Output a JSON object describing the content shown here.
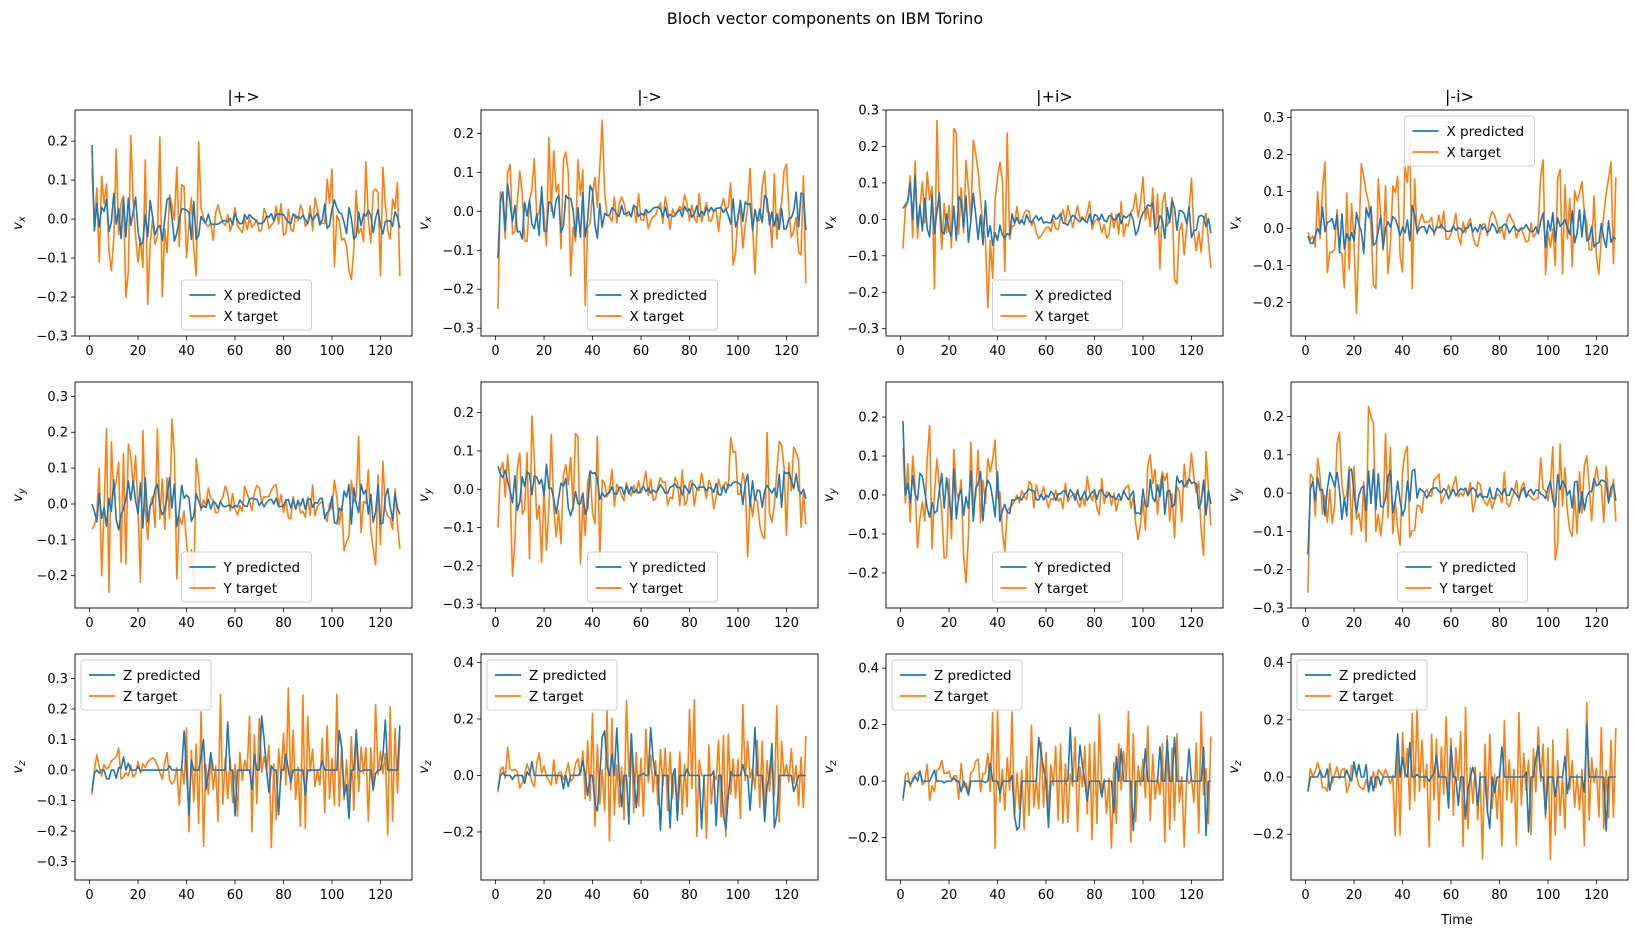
{
  "figure": {
    "title": "Bloch vector components on IBM Torino",
    "xlabel": "Time",
    "colors": {
      "predicted": "#1f77b4",
      "target": "#ff7f0e"
    }
  },
  "chart_data": [
    {
      "type": "line",
      "row": 0,
      "col": 0,
      "title": "|+>",
      "ylabel": "v_x",
      "xlim": [
        -6,
        133
      ],
      "ylim": [
        -0.3,
        0.28
      ],
      "yticks": [
        -0.3,
        -0.2,
        -0.1,
        0.0,
        0.1,
        0.2
      ],
      "xticks": [
        0,
        20,
        40,
        60,
        80,
        100,
        120
      ],
      "legend": "lower-center",
      "seed": 101,
      "amp": 0.23,
      "nudge": 0.015,
      "series": [
        {
          "name": "X predicted",
          "kind": "predicted",
          "values_sample": [
            0.19,
            -0.03,
            0.04,
            -0.02,
            0.03,
            0.02,
            0.05
          ]
        },
        {
          "name": "X target",
          "kind": "target",
          "values_sample": [
            0.13,
            -0.02,
            0.08,
            -0.11,
            0.11,
            0.04,
            0.09
          ]
        }
      ]
    },
    {
      "type": "line",
      "row": 0,
      "col": 1,
      "title": "|->",
      "ylabel": "v_x",
      "xlim": [
        -6,
        133
      ],
      "ylim": [
        -0.32,
        0.26
      ],
      "yticks": [
        -0.3,
        -0.2,
        -0.1,
        0.0,
        0.1,
        0.2
      ],
      "xticks": [
        0,
        20,
        40,
        60,
        80,
        100,
        120
      ],
      "legend": "lower-center",
      "seed": 202,
      "amp": 0.24,
      "nudge": 0.01,
      "series": [
        {
          "name": "X predicted",
          "kind": "predicted",
          "values_sample": [
            -0.12,
            0.03,
            0.05,
            -0.05,
            0.07,
            0.02
          ]
        },
        {
          "name": "X target",
          "kind": "target",
          "values_sample": [
            -0.25,
            0.05,
            0.02,
            -0.07,
            0.1,
            0.12
          ]
        }
      ]
    },
    {
      "type": "line",
      "row": 0,
      "col": 2,
      "title": "|+i>",
      "ylabel": "v_x",
      "xlim": [
        -6,
        133
      ],
      "ylim": [
        -0.32,
        0.3
      ],
      "yticks": [
        -0.3,
        -0.2,
        -0.1,
        0.0,
        0.1,
        0.2,
        0.3
      ],
      "xticks": [
        0,
        20,
        40,
        60,
        80,
        100,
        120
      ],
      "legend": "lower-center",
      "seed": 303,
      "amp": 0.25,
      "nudge": 0.02,
      "series": [
        {
          "name": "X predicted",
          "kind": "predicted",
          "values_sample": [
            0.03,
            0.04,
            0.05,
            0.1,
            0.0,
            0.12
          ]
        },
        {
          "name": "X target",
          "kind": "target",
          "values_sample": [
            -0.08,
            0.03,
            0.05,
            0.12,
            -0.05,
            0.16
          ]
        }
      ]
    },
    {
      "type": "line",
      "row": 0,
      "col": 3,
      "title": "|-i>",
      "ylabel": "v_x",
      "xlim": [
        -6,
        133
      ],
      "ylim": [
        -0.29,
        0.32
      ],
      "yticks": [
        -0.2,
        -0.1,
        0.0,
        0.1,
        0.2,
        0.3
      ],
      "xticks": [
        0,
        20,
        40,
        60,
        80,
        100,
        120
      ],
      "legend": "upper-center",
      "seed": 404,
      "amp": 0.23,
      "nudge": 0.0,
      "series": [
        {
          "name": "X predicted",
          "kind": "predicted",
          "values_sample": [
            -0.02,
            -0.04,
            -0.04,
            -0.02,
            0.0
          ]
        },
        {
          "name": "X target",
          "kind": "target",
          "values_sample": [
            -0.01,
            -0.03,
            -0.02,
            -0.05,
            0.1
          ]
        }
      ]
    },
    {
      "type": "line",
      "row": 1,
      "col": 0,
      "title": "",
      "ylabel": "v_y",
      "xlim": [
        -6,
        133
      ],
      "ylim": [
        -0.29,
        0.34
      ],
      "yticks": [
        -0.2,
        -0.1,
        0.0,
        0.1,
        0.2,
        0.3
      ],
      "xticks": [
        0,
        20,
        40,
        60,
        80,
        100,
        120
      ],
      "legend": "lower-center",
      "seed": 505,
      "amp": 0.25,
      "nudge": 0.0,
      "series": [
        {
          "name": "Y predicted",
          "kind": "predicted",
          "values_sample": [
            0.0,
            -0.02,
            -0.05,
            0.03,
            -0.04
          ]
        },
        {
          "name": "Y target",
          "kind": "target",
          "values_sample": [
            -0.07,
            -0.06,
            -0.03,
            0.1,
            -0.2
          ]
        }
      ]
    },
    {
      "type": "line",
      "row": 1,
      "col": 1,
      "title": "",
      "ylabel": "v_y",
      "xlim": [
        -6,
        133
      ],
      "ylim": [
        -0.31,
        0.28
      ],
      "yticks": [
        -0.3,
        -0.2,
        -0.1,
        0.0,
        0.1,
        0.2
      ],
      "xticks": [
        0,
        20,
        40,
        60,
        80,
        100,
        120
      ],
      "legend": "lower-center",
      "seed": 606,
      "amp": 0.23,
      "nudge": 0.01,
      "series": [
        {
          "name": "Y predicted",
          "kind": "predicted",
          "values_sample": [
            0.06,
            0.04,
            0.03,
            0.05,
            0.02
          ]
        },
        {
          "name": "Y target",
          "kind": "target",
          "values_sample": [
            -0.1,
            0.05,
            0.07,
            -0.02,
            0.09
          ]
        }
      ]
    },
    {
      "type": "line",
      "row": 1,
      "col": 2,
      "title": "",
      "ylabel": "v_y",
      "xlim": [
        -6,
        133
      ],
      "ylim": [
        -0.29,
        0.29
      ],
      "yticks": [
        -0.2,
        -0.1,
        0.0,
        0.1,
        0.2
      ],
      "xticks": [
        0,
        20,
        40,
        60,
        80,
        100,
        120
      ],
      "legend": "lower-center",
      "seed": 707,
      "amp": 0.23,
      "nudge": 0.01,
      "series": [
        {
          "name": "Y predicted",
          "kind": "predicted",
          "values_sample": [
            0.19,
            0.0,
            0.03,
            -0.02,
            0.05
          ]
        },
        {
          "name": "Y target",
          "kind": "target",
          "values_sample": [
            0.12,
            -0.02,
            0.08,
            -0.07,
            0.1
          ]
        }
      ]
    },
    {
      "type": "line",
      "row": 1,
      "col": 3,
      "title": "",
      "ylabel": "v_y",
      "xlim": [
        -6,
        133
      ],
      "ylim": [
        -0.3,
        0.29
      ],
      "yticks": [
        -0.3,
        -0.2,
        -0.1,
        0.0,
        0.1,
        0.2
      ],
      "xticks": [
        0,
        20,
        40,
        60,
        80,
        100,
        120
      ],
      "legend": "lower-center",
      "seed": 808,
      "amp": 0.23,
      "nudge": 0.0,
      "series": [
        {
          "name": "Y predicted",
          "kind": "predicted",
          "values_sample": [
            -0.16,
            0.01,
            0.03,
            -0.02,
            0.04
          ]
        },
        {
          "name": "Y target",
          "kind": "target",
          "values_sample": [
            -0.26,
            0.05,
            0.04,
            -0.06,
            0.09
          ]
        }
      ]
    },
    {
      "type": "line",
      "row": 2,
      "col": 0,
      "title": "",
      "ylabel": "v_z",
      "xlim": [
        -6,
        133
      ],
      "ylim": [
        -0.36,
        0.38
      ],
      "yticks": [
        -0.3,
        -0.2,
        -0.1,
        0.0,
        0.1,
        0.2,
        0.3
      ],
      "xticks": [
        0,
        20,
        40,
        60,
        80,
        100,
        120
      ],
      "legend": "upper-left",
      "seed": 909,
      "amp": 0.28,
      "nudge": 0.0,
      "series": [
        {
          "name": "Z predicted",
          "kind": "predicted",
          "values_sample": [
            -0.07,
            -0.01,
            0.0,
            -0.01,
            0.0
          ]
        },
        {
          "name": "Z target",
          "kind": "target",
          "values_sample": [
            -0.08,
            0.0,
            0.05,
            0.01,
            -0.02
          ]
        }
      ]
    },
    {
      "type": "line",
      "row": 2,
      "col": 1,
      "title": "",
      "ylabel": "v_z",
      "xlim": [
        -6,
        133
      ],
      "ylim": [
        -0.37,
        0.43
      ],
      "yticks": [
        -0.2,
        0.0,
        0.2,
        0.4
      ],
      "xticks": [
        0,
        20,
        40,
        60,
        80,
        100,
        120
      ],
      "legend": "upper-left",
      "seed": 1010,
      "amp": 0.3,
      "nudge": 0.0,
      "series": [
        {
          "name": "Z predicted",
          "kind": "predicted",
          "values_sample": [
            -0.05,
            0.0,
            0.01,
            0.0,
            0.0
          ]
        },
        {
          "name": "Z target",
          "kind": "target",
          "values_sample": [
            -0.06,
            0.02,
            0.03,
            -0.01,
            0.1
          ]
        }
      ]
    },
    {
      "type": "line",
      "row": 2,
      "col": 2,
      "title": "",
      "ylabel": "v_z",
      "xlim": [
        -6,
        133
      ],
      "ylim": [
        -0.35,
        0.45
      ],
      "yticks": [
        -0.2,
        0.0,
        0.2,
        0.4
      ],
      "xticks": [
        0,
        20,
        40,
        60,
        80,
        100,
        120
      ],
      "legend": "upper-left",
      "seed": 1111,
      "amp": 0.3,
      "nudge": 0.0,
      "series": [
        {
          "name": "Z predicted",
          "kind": "predicted",
          "values_sample": [
            -0.06,
            0.0,
            0.0,
            -0.01,
            0.0
          ]
        },
        {
          "name": "Z target",
          "kind": "target",
          "values_sample": [
            -0.07,
            0.02,
            0.03,
            -0.02,
            0.01
          ]
        }
      ]
    },
    {
      "type": "line",
      "row": 2,
      "col": 3,
      "title": "",
      "ylabel": "v_z",
      "xlim": [
        -6,
        133
      ],
      "ylim": [
        -0.36,
        0.43
      ],
      "yticks": [
        -0.2,
        0.0,
        0.2,
        0.4
      ],
      "xticks": [
        0,
        20,
        40,
        60,
        80,
        100,
        120
      ],
      "legend": "upper-left",
      "seed": 1212,
      "amp": 0.3,
      "nudge": 0.0,
      "series": [
        {
          "name": "Z predicted",
          "kind": "predicted",
          "values_sample": [
            -0.05,
            0.0,
            0.0,
            0.0,
            0.0
          ]
        },
        {
          "name": "Z target",
          "kind": "target",
          "values_sample": [
            -0.05,
            0.03,
            0.0,
            0.02,
            0.05
          ]
        }
      ]
    }
  ]
}
